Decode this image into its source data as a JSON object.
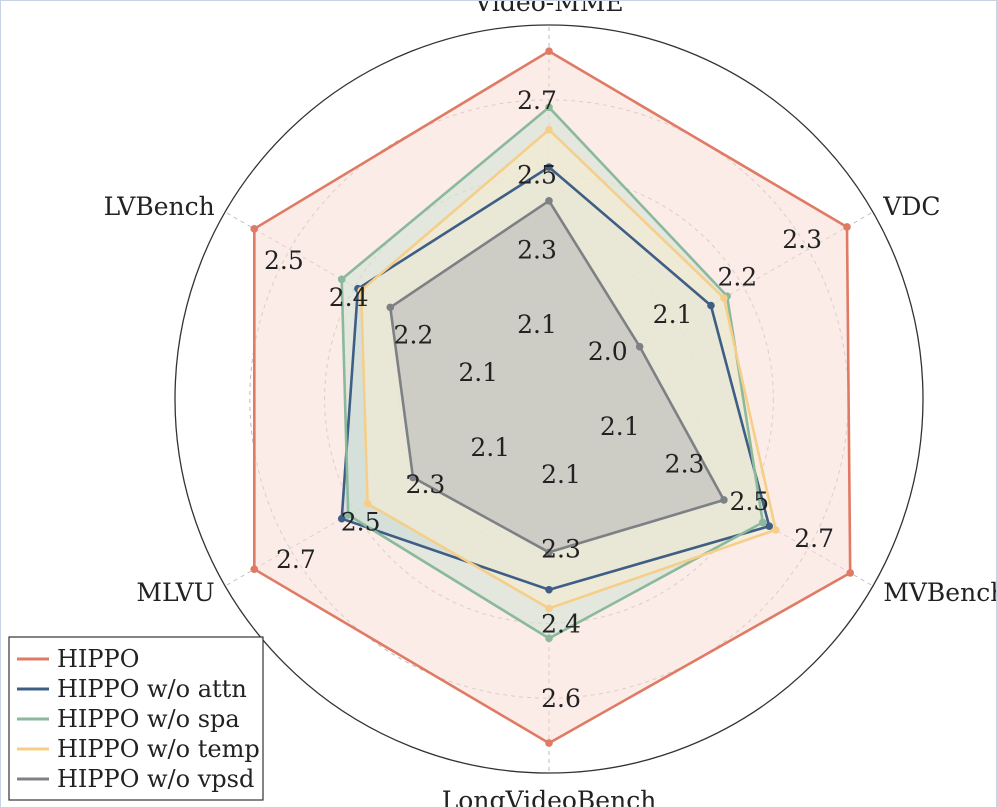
{
  "chart_data": {
    "type": "radar",
    "title": "",
    "axes": [
      "Video-MME",
      "VDC",
      "MVBench",
      "LongVideoBench",
      "MLVU",
      "LVBench"
    ],
    "axis_ticks": [
      {
        "axis": "Video-MME",
        "ticks": [
          "2.1",
          "2.3",
          "2.5",
          "2.7"
        ]
      },
      {
        "axis": "VDC",
        "ticks": [
          "2.0",
          "2.1",
          "2.2",
          "2.3"
        ]
      },
      {
        "axis": "MVBench",
        "ticks": [
          "2.1",
          "2.3",
          "2.5",
          "2.7"
        ]
      },
      {
        "axis": "LongVideoBench",
        "ticks": [
          "2.1",
          "2.3",
          "2.4",
          "2.6"
        ]
      },
      {
        "axis": "MLVU",
        "ticks": [
          "2.1",
          "2.3",
          "2.5",
          "2.7"
        ]
      },
      {
        "axis": "LVBench",
        "ticks": [
          "2.1",
          "2.2",
          "2.4",
          "2.5"
        ]
      }
    ],
    "radial_scale": "normalized, ring levels at 0.2, 0.4, 0.6, 0.8, 1.0",
    "series": [
      {
        "name": "HIPPO",
        "color": "#e07a64",
        "fill": "#f8ddd6",
        "values": [
          0.93,
          0.92,
          0.93,
          0.92,
          0.91,
          0.91
        ]
      },
      {
        "name": "HIPPO w/o attn",
        "color": "#3f5e86",
        "fill": "#c3cedd",
        "values": [
          0.62,
          0.5,
          0.68,
          0.51,
          0.64,
          0.59
        ]
      },
      {
        "name": "HIPPO w/o spa",
        "color": "#8ab99c",
        "fill": "#cfe3d5",
        "values": [
          0.78,
          0.55,
          0.66,
          0.64,
          0.62,
          0.64
        ]
      },
      {
        "name": "HIPPO w/o temp",
        "color": "#f5cf8a",
        "fill": "#f9ecd0",
        "values": [
          0.72,
          0.54,
          0.7,
          0.56,
          0.56,
          0.58
        ]
      },
      {
        "name": "HIPPO w/o vpsd",
        "color": "#7d8085",
        "fill": "#b8b8b8",
        "values": [
          0.53,
          0.28,
          0.54,
          0.41,
          0.42,
          0.49
        ]
      }
    ],
    "legend_position": "bottom-left",
    "grid": true
  }
}
